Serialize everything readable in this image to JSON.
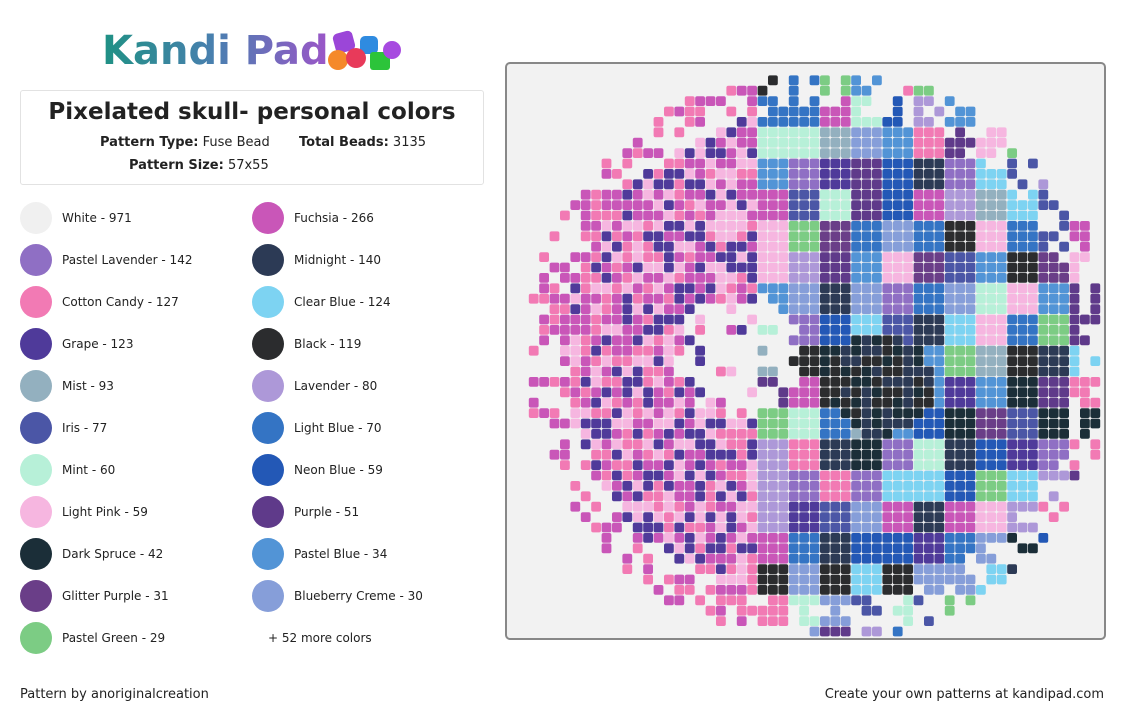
{
  "logo": "Kandi Pad",
  "title": "Pixelated skull- personal colors",
  "details": {
    "pattern_type_label": "Pattern Type:",
    "pattern_type": "Fuse Bead",
    "total_beads_label": "Total Beads:",
    "total_beads": 3135,
    "pattern_size_label": "Pattern Size:",
    "pattern_size": "57x55"
  },
  "colors": [
    {
      "label": "White - 971",
      "color": "#f0f0f0"
    },
    {
      "label": "Fuchsia - 266",
      "color": "#c956b8"
    },
    {
      "label": "Pastel Lavender - 142",
      "color": "#8f6fc4"
    },
    {
      "label": "Midnight - 140",
      "color": "#2c3a55"
    },
    {
      "label": "Cotton Candy - 127",
      "color": "#f27ab4"
    },
    {
      "label": "Clear Blue - 124",
      "color": "#7dd3f2"
    },
    {
      "label": "Grape - 123",
      "color": "#4f3a9a"
    },
    {
      "label": "Black - 119",
      "color": "#2b2c2e"
    },
    {
      "label": "Mist - 93",
      "color": "#93b0bf"
    },
    {
      "label": "Lavender - 80",
      "color": "#ad98d8"
    },
    {
      "label": "Iris - 77",
      "color": "#4b56a6"
    },
    {
      "label": "Light Blue - 70",
      "color": "#3474c4"
    },
    {
      "label": "Mint - 60",
      "color": "#b7f0d8"
    },
    {
      "label": "Neon Blue - 59",
      "color": "#2358b6"
    },
    {
      "label": "Light Pink - 59",
      "color": "#f6b6e0"
    },
    {
      "label": "Purple - 51",
      "color": "#5f3a8a"
    },
    {
      "label": "Dark Spruce - 42",
      "color": "#1b2e38"
    },
    {
      "label": "Pastel Blue - 34",
      "color": "#5294d6"
    },
    {
      "label": "Glitter Purple - 31",
      "color": "#6a3e88"
    },
    {
      "label": "Blueberry Creme - 30",
      "color": "#869ed9"
    },
    {
      "label": "Pastel Green - 29",
      "color": "#7ccc84"
    }
  ],
  "more_colors": "+ 52 more colors",
  "footer_left": "Pattern by anoriginalcreation",
  "footer_right": "Create your own patterns at kandipad.com"
}
